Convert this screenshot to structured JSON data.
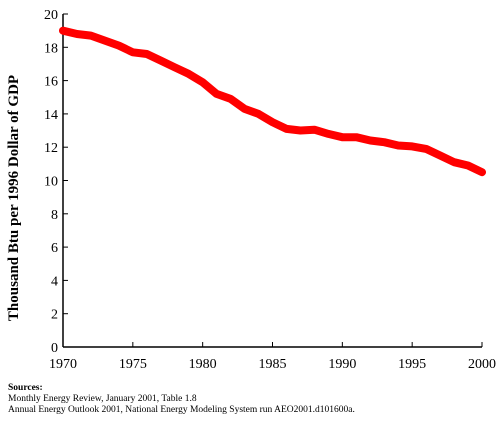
{
  "chart_data": {
    "type": "line",
    "title": "",
    "xlabel": "",
    "ylabel": "Thousand Btu per 1996 Dollar of GDP",
    "xlim": [
      1970,
      2000
    ],
    "ylim": [
      0,
      20
    ],
    "grid": false,
    "legend": "none",
    "x_ticks": [
      1970,
      1975,
      1980,
      1985,
      1990,
      1995,
      2000
    ],
    "y_ticks": [
      0,
      2,
      4,
      6,
      8,
      10,
      12,
      14,
      16,
      18,
      20
    ],
    "series": [
      {
        "color": "#ff0000",
        "x": [
          1970,
          1971,
          1972,
          1973,
          1974,
          1975,
          1976,
          1977,
          1978,
          1979,
          1980,
          1981,
          1982,
          1983,
          1984,
          1985,
          1986,
          1987,
          1988,
          1989,
          1990,
          1991,
          1992,
          1993,
          1994,
          1995,
          1996,
          1997,
          1998,
          1999,
          2000
        ],
        "values": [
          19.0,
          18.8,
          18.7,
          18.4,
          18.1,
          17.7,
          17.6,
          17.2,
          16.8,
          16.4,
          15.9,
          15.2,
          14.9,
          14.3,
          14.0,
          13.5,
          13.1,
          13.0,
          13.05,
          12.8,
          12.6,
          12.6,
          12.4,
          12.3,
          12.1,
          12.05,
          11.9,
          11.5,
          11.1,
          10.9,
          10.5
        ]
      }
    ]
  },
  "sources": {
    "title": "Sources:",
    "line1": "Monthly Energy Review, January 2001, Table 1.8",
    "line2": "Annual Energy Outlook 2001, National Energy Modeling System run AEO2001.d101600a."
  }
}
